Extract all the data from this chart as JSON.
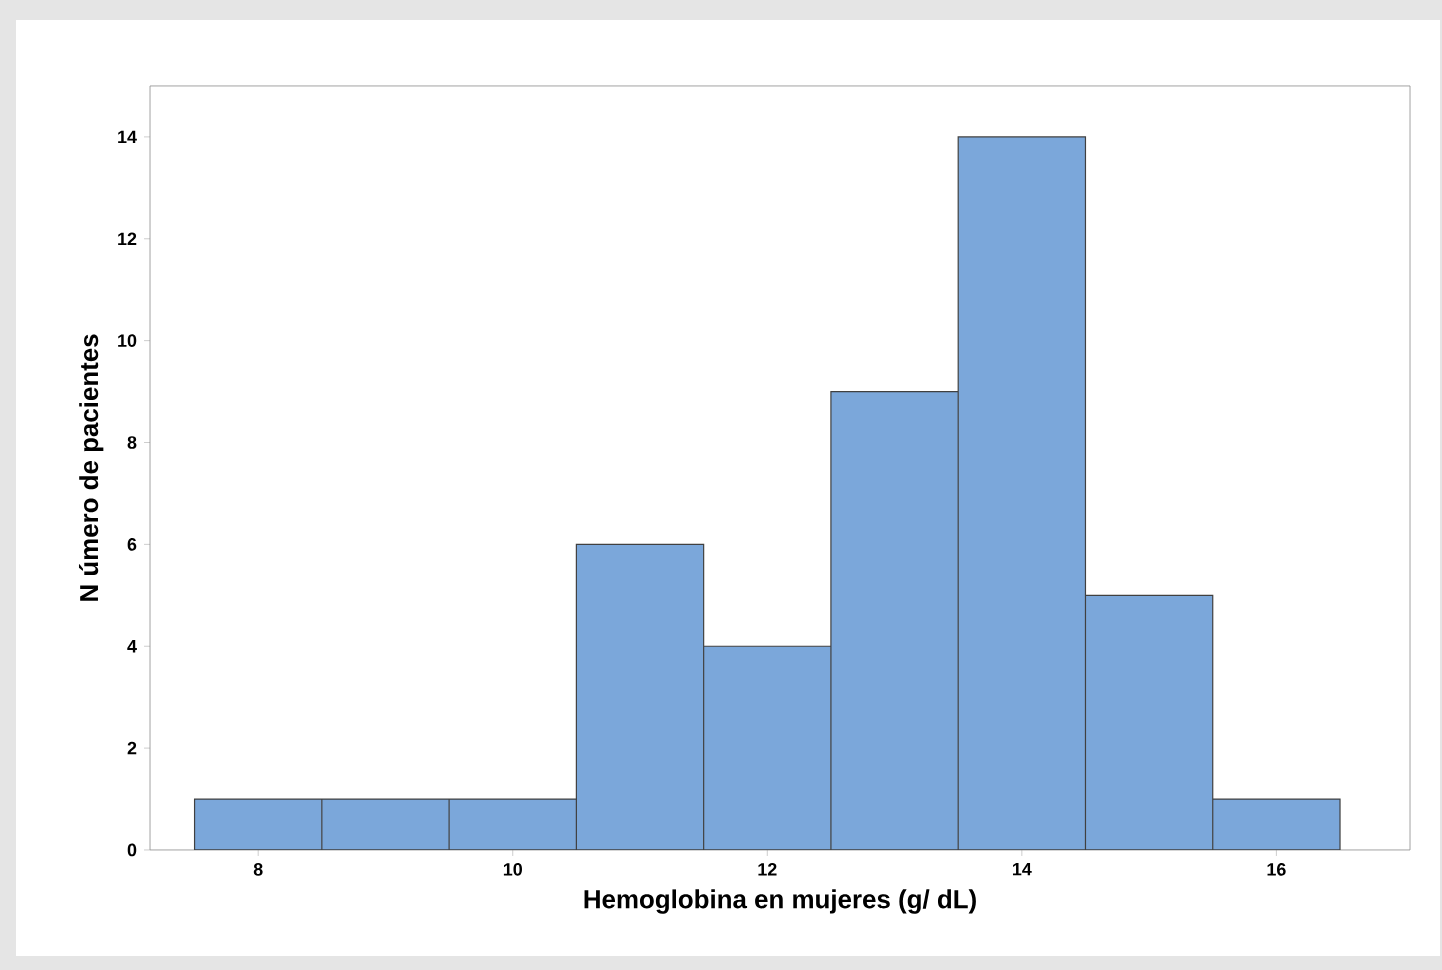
{
  "chart_data": {
    "type": "histogram",
    "xlabel": "Hemoglobina en mujeres (g/ dL)",
    "ylabel": "N úmero de pacientes",
    "bins": [
      7.5,
      8.5,
      9.5,
      10.5,
      11.5,
      12.5,
      13.5,
      14.5,
      15.5,
      16.5
    ],
    "values": [
      1,
      1,
      1,
      6,
      4,
      9,
      14,
      5,
      1
    ],
    "color": "#7ba7da",
    "xlim": [
      7.15,
      17.05
    ],
    "ylim": [
      0,
      15
    ],
    "xticks": [
      8,
      10,
      12,
      14,
      16
    ],
    "yticks": [
      0,
      2,
      4,
      6,
      8,
      10,
      12,
      14
    ],
    "grid": false
  }
}
